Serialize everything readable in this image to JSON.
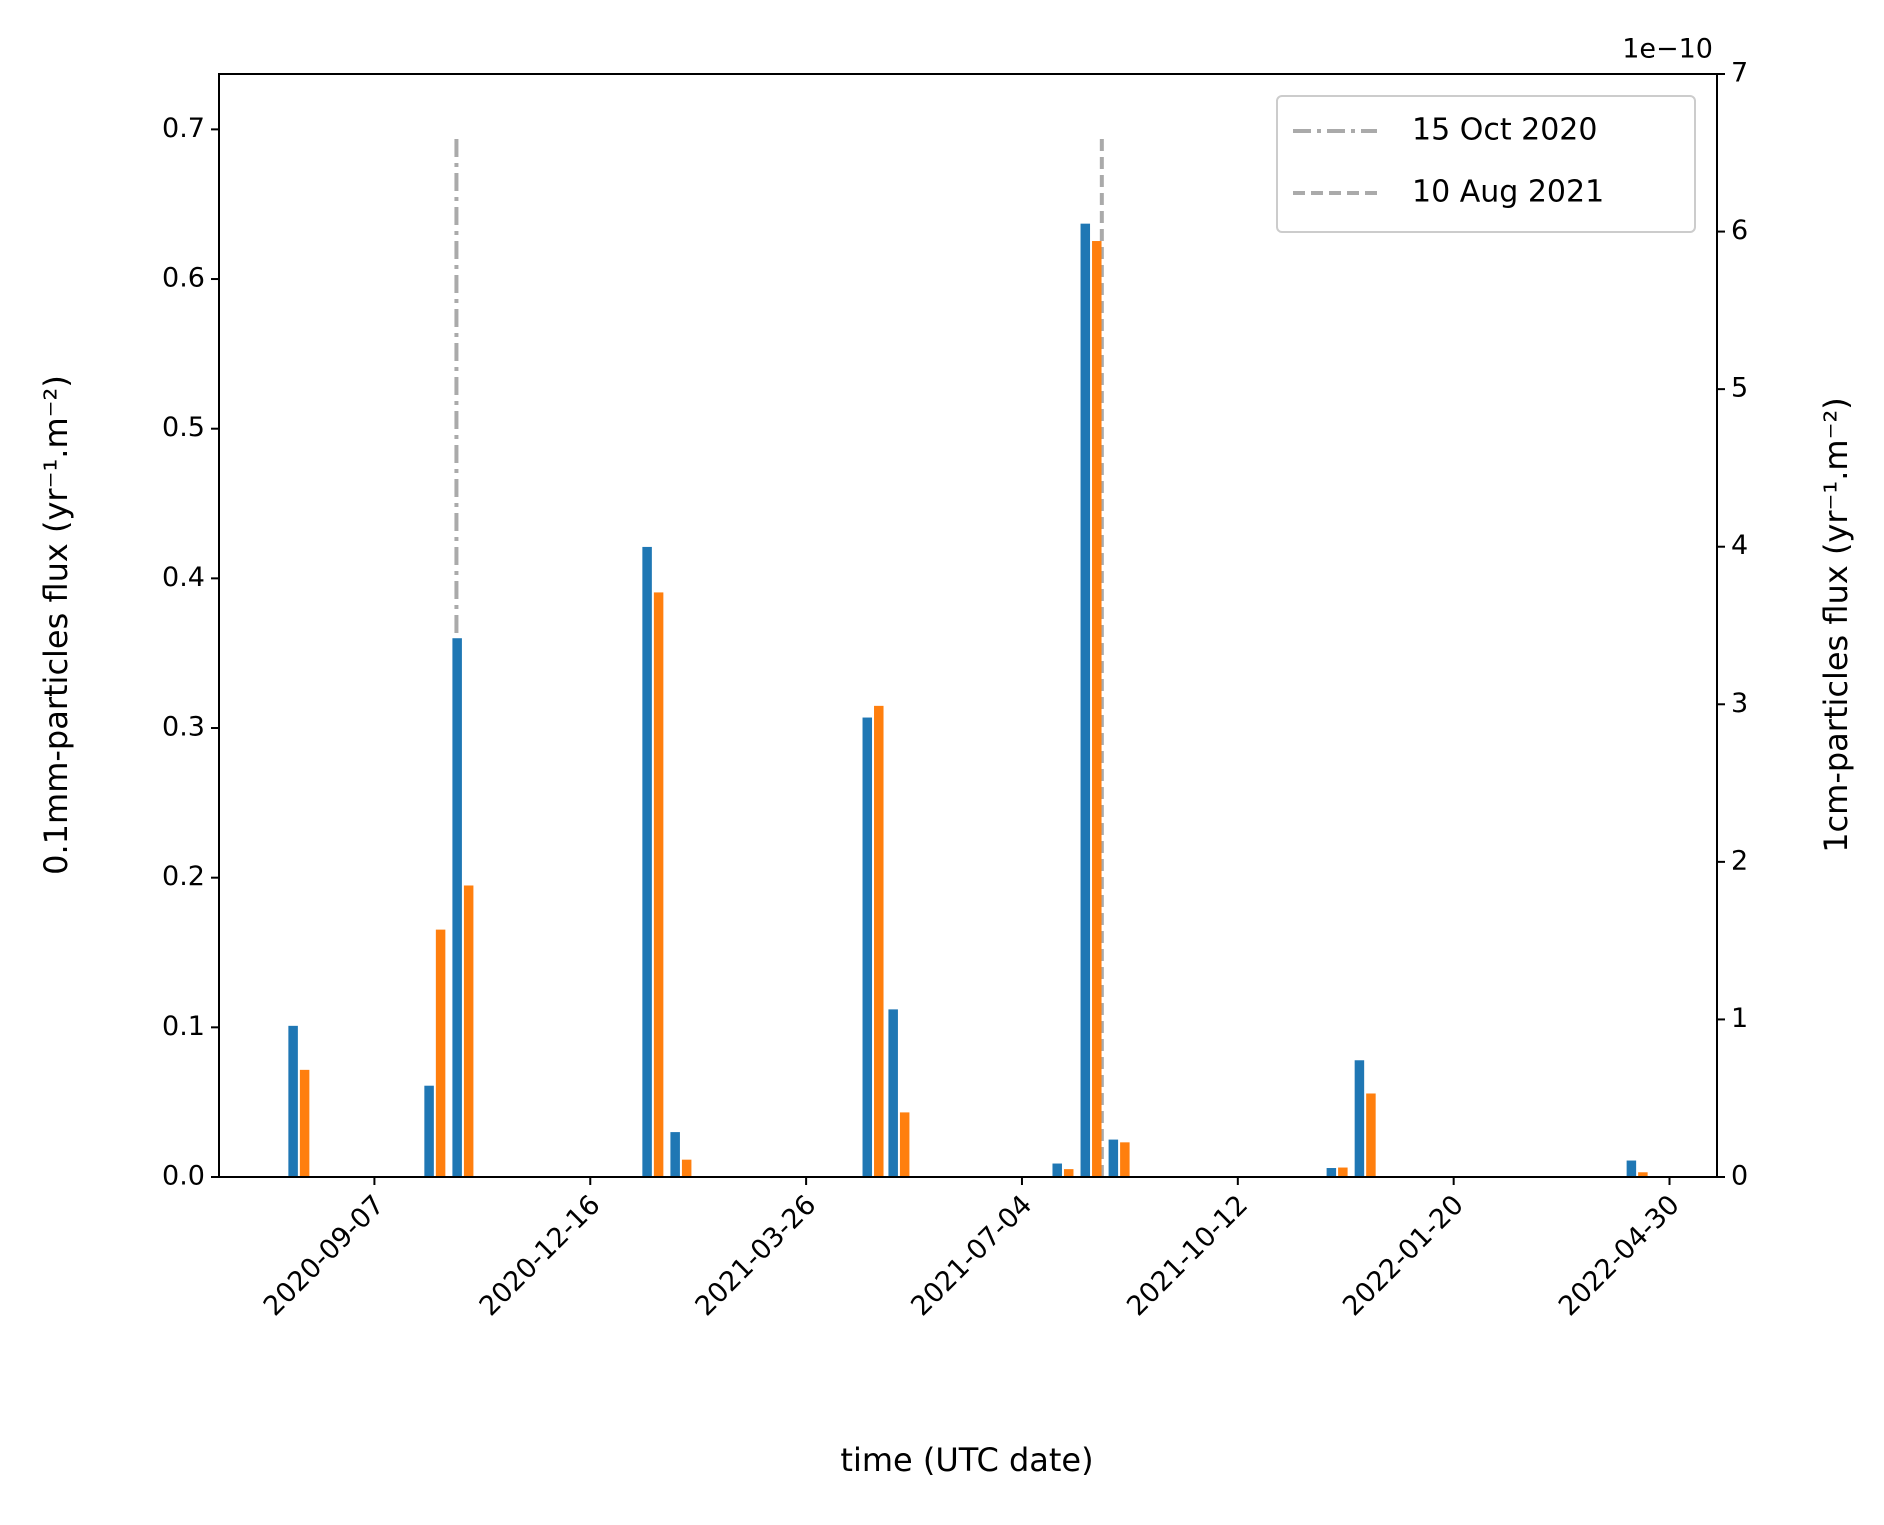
{
  "chart_data": {
    "type": "bar",
    "x_label": "time (UTC date)",
    "y_label": "0.1mm-particles flux (yr⁻¹.m⁻²)",
    "y2_label": "1cm-particles flux (yr⁻¹.m⁻²)",
    "y2_offset_label": "1e−10",
    "x": [
      "2020-08-03",
      "2020-10-05",
      "2020-10-18",
      "2021-01-14",
      "2021-01-27",
      "2021-04-26",
      "2021-05-08",
      "2021-07-23",
      "2021-08-05",
      "2021-08-18",
      "2021-11-27",
      "2021-12-10",
      "2022-04-15"
    ],
    "series": [
      {
        "color": "#1f77b4",
        "axis": "y",
        "values": [
          0.101,
          0.061,
          0.36,
          0.421,
          0.03,
          0.307,
          0.112,
          0.009,
          0.637,
          0.025,
          0.006,
          0.078,
          0.011
        ]
      },
      {
        "color": "#ff7f0e",
        "axis": "y2",
        "values": [
          0.68,
          1.57,
          1.85,
          3.71,
          0.11,
          2.99,
          0.41,
          0.05,
          5.94,
          0.22,
          0.06,
          0.53,
          0.03
        ]
      }
    ],
    "vlines": [
      {
        "name": "15 Oct 2020",
        "x": "2020-10-15",
        "ymax": 0.695,
        "style": "dashdot",
        "color": "#aaaaaa"
      },
      {
        "name": "10 Aug 2021",
        "x": "2021-08-10",
        "ymax": 0.695,
        "style": "dashed",
        "color": "#aaaaaa"
      }
    ],
    "xlim": [
      "2020-06-27",
      "2022-05-22"
    ],
    "xticks": [
      "2020-09-07",
      "2020-12-16",
      "2021-03-26",
      "2021-07-04",
      "2021-10-12",
      "2022-01-20",
      "2022-04-30"
    ],
    "ylim": [
      0,
      0.737
    ],
    "yticks": [
      0.0,
      0.1,
      0.2,
      0.3,
      0.4,
      0.5,
      0.6,
      0.7
    ],
    "y2lim": [
      0,
      7
    ],
    "y2ticks": [
      0,
      1,
      2,
      3,
      4,
      5,
      6,
      7
    ],
    "legend": "upper right"
  }
}
